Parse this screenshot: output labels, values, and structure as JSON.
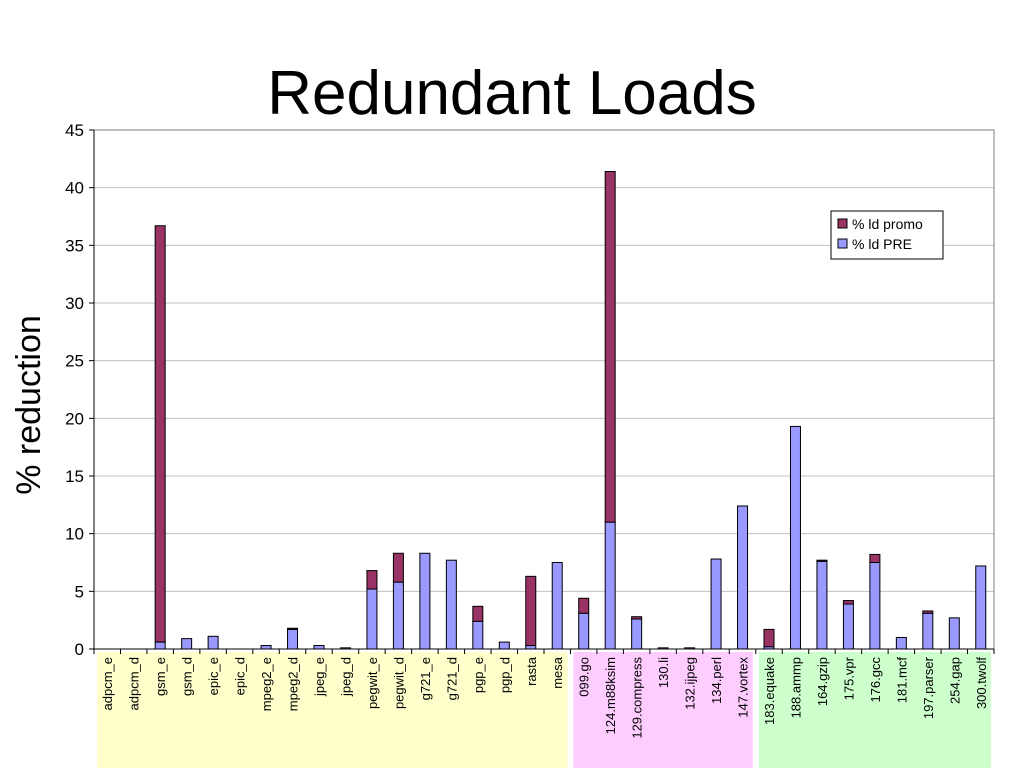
{
  "chart_data": {
    "type": "bar",
    "stacked": true,
    "title": "Redundant Loads",
    "xlabel": "",
    "ylabel": "% reduction",
    "ylim": [
      0,
      45
    ],
    "yticks": [
      0,
      5,
      10,
      15,
      20,
      25,
      30,
      35,
      40,
      45
    ],
    "grid": true,
    "legend_position": "top-right",
    "categories": [
      "adpcm_e",
      "adpcm_d",
      "gsm_e",
      "gsm_d",
      "epic_e",
      "epic_d",
      "mpeg2_e",
      "mpeg2_d",
      "jpeg_e",
      "jpeg_d",
      "pegwit_e",
      "pegwit_d",
      "g721_e",
      "g721_d",
      "pgp_e",
      "pgp_d",
      "rasta",
      "mesa",
      "099.go",
      "124.m88ksim",
      "129.compress",
      "130.li",
      "132.ijpeg",
      "134.perl",
      "147.vortex",
      "183.equake",
      "188.ammp",
      "164.gzip",
      "175.vpr",
      "176.gcc",
      "181.mcf",
      "197.parser",
      "254.gap",
      "300.twolf"
    ],
    "groups": [
      {
        "start": 0,
        "end": 17,
        "color": "#ffffcc"
      },
      {
        "start": 18,
        "end": 24,
        "color": "#ffccff"
      },
      {
        "start": 25,
        "end": 33,
        "color": "#ccffcc"
      }
    ],
    "series": [
      {
        "name": "% ld PRE",
        "color": "#9999ff",
        "values": [
          0,
          0,
          0.6,
          0.9,
          1.1,
          0,
          0.3,
          1.7,
          0.3,
          0.1,
          5.2,
          5.8,
          8.3,
          7.7,
          2.4,
          0.6,
          0.3,
          7.5,
          3.1,
          11.0,
          2.6,
          0.1,
          0.1,
          7.8,
          12.4,
          0.2,
          19.3,
          7.6,
          3.9,
          7.5,
          1.0,
          3.1,
          2.7,
          7.2
        ]
      },
      {
        "name": "% ld promo",
        "color": "#993366",
        "values": [
          0,
          0,
          36.1,
          0,
          0,
          0,
          0,
          0.1,
          0,
          0,
          1.6,
          2.5,
          0,
          0,
          1.3,
          0,
          6.0,
          0,
          1.3,
          30.4,
          0.2,
          0,
          0,
          0,
          0,
          1.5,
          0,
          0.1,
          0.3,
          0.7,
          0,
          0.2,
          0,
          0
        ]
      }
    ]
  }
}
